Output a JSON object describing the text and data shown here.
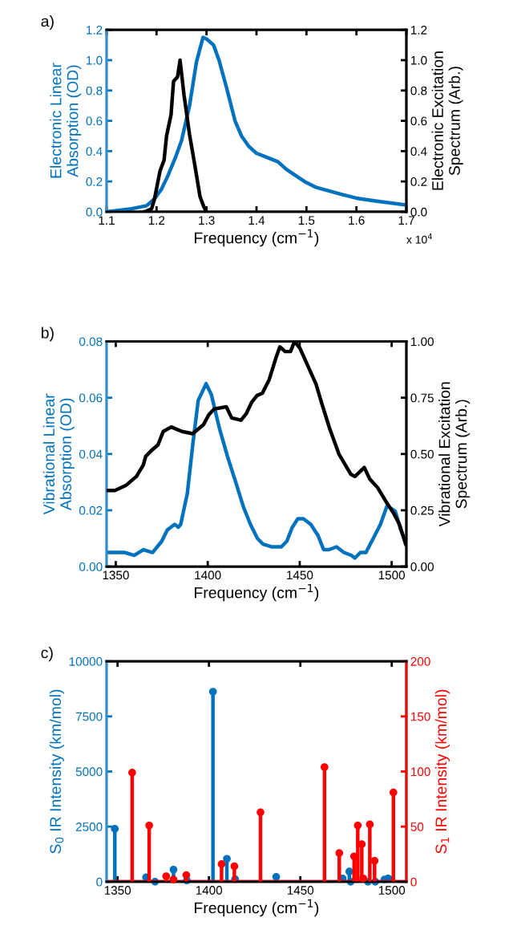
{
  "chart_data": [
    {
      "type": "line",
      "title": "a)",
      "xlabel": "Frequency (cm$^{−1}$)",
      "ylabel": "Electronic Linear\nAbsorption (OD)",
      "y2label": "Electronic Excitation\nSpectrum (Arb.)",
      "xlim": [
        1.1,
        1.7
      ],
      "xticks": [
        1.1,
        1.2,
        1.3,
        1.4,
        1.5,
        1.6,
        1.7
      ],
      "ylim": [
        0,
        1.2
      ],
      "yticks": [
        {
          "value": 0,
          "label": "0.0"
        },
        {
          "value": 0.2,
          "label": "0.2"
        },
        {
          "value": 0.4,
          "label": "0.4"
        },
        {
          "value": 0.6,
          "label": "0.6"
        },
        {
          "value": 0.8,
          "label": "0.8"
        },
        {
          "value": 1.0,
          "label": "1.0"
        },
        {
          "value": 1.2,
          "label": "1.2"
        }
      ],
      "y2lim": [
        0,
        1.2
      ],
      "y2ticks": [
        {
          "value": 0,
          "label": "0.0"
        },
        {
          "value": 0.2,
          "label": "0.2"
        },
        {
          "value": 0.4,
          "label": "0.4"
        },
        {
          "value": 0.6,
          "label": "0.6"
        },
        {
          "value": 0.8,
          "label": "0.8"
        },
        {
          "value": 1.0,
          "label": "1.0"
        },
        {
          "value": 1.2,
          "label": "1.2"
        }
      ],
      "annotations": [
        "x 10$^{4}$"
      ],
      "series": [
        {
          "color": "#0072bd",
          "x": [
            1.1,
            1.15,
            1.18,
            1.196,
            1.21,
            1.223,
            1.238,
            1.25,
            1.266,
            1.28,
            1.293,
            1.3,
            1.314,
            1.325,
            1.34,
            1.357,
            1.37,
            1.385,
            1.4,
            1.42,
            1.443,
            1.46,
            1.496,
            1.52,
            1.571,
            1.6,
            1.641,
            1.7
          ],
          "values": [
            0.0,
            0.02,
            0.04,
            0.086,
            0.15,
            0.24,
            0.36,
            0.47,
            0.7,
            0.99,
            1.15,
            1.14,
            1.1,
            1.0,
            0.82,
            0.6,
            0.5,
            0.43,
            0.386,
            0.36,
            0.33,
            0.28,
            0.2,
            0.16,
            0.114,
            0.09,
            0.07,
            0.045
          ]
        },
        {
          "color": "#000000",
          "axis": "y2",
          "x": [
            1.175,
            1.18,
            1.19,
            1.196,
            1.207,
            1.215,
            1.22,
            1.229,
            1.234,
            1.242,
            1.247,
            1.255,
            1.266,
            1.277,
            1.287,
            1.295,
            1.3
          ],
          "values": [
            0.0,
            0.005,
            0.02,
            0.086,
            0.27,
            0.34,
            0.5,
            0.64,
            0.86,
            0.89,
            1.0,
            0.77,
            0.51,
            0.3,
            0.1,
            0.03,
            0.0
          ]
        }
      ]
    },
    {
      "type": "line",
      "title": "b)",
      "xlabel": "Frequency (cm$^{−1}$)",
      "ylabel": "Vibrational Linear\nAbsorption (OD)",
      "y2label": "Vibrational Excitation\nSpectrum (Arb.)",
      "xlim": [
        1345,
        1508
      ],
      "xticks": [
        1350,
        1400,
        1450,
        1500
      ],
      "ylim": [
        0,
        0.08
      ],
      "yticks": [
        {
          "value": 0,
          "label": "0.00"
        },
        {
          "value": 0.02,
          "label": "0.02"
        },
        {
          "value": 0.04,
          "label": "0.04"
        },
        {
          "value": 0.06,
          "label": "0.06"
        },
        {
          "value": 0.08,
          "label": "0.08"
        }
      ],
      "y2lim": [
        0,
        1.0
      ],
      "y2ticks": [
        {
          "value": 0,
          "label": "0.00"
        },
        {
          "value": 0.25,
          "label": "0.25"
        },
        {
          "value": 0.5,
          "label": "0.50"
        },
        {
          "value": 0.75,
          "label": "0.75"
        },
        {
          "value": 1.0,
          "label": "1.00"
        }
      ],
      "series": [
        {
          "color": "#0072bd",
          "x": [
            1345,
            1350,
            1355,
            1360,
            1365,
            1370,
            1375,
            1378,
            1380,
            1382,
            1384,
            1385.3,
            1388.9,
            1391.8,
            1394.8,
            1399.1,
            1402,
            1406.4,
            1410.8,
            1415.2,
            1419.5,
            1423.2,
            1427,
            1430,
            1435,
            1440,
            1443,
            1446,
            1449,
            1452,
            1456,
            1460,
            1463,
            1466,
            1470,
            1474,
            1478,
            1480,
            1483,
            1486,
            1490,
            1493.9,
            1497.5,
            1501.9,
            1505,
            1508
          ],
          "values": [
            0.005,
            0.005,
            0.005,
            0.004,
            0.006,
            0.005,
            0.009,
            0.013,
            0.014,
            0.015,
            0.014,
            0.015,
            0.026,
            0.043,
            0.059,
            0.065,
            0.061,
            0.049,
            0.039,
            0.03,
            0.021,
            0.015,
            0.01,
            0.008,
            0.007,
            0.007,
            0.009,
            0.014,
            0.017,
            0.017,
            0.015,
            0.011,
            0.006,
            0.006,
            0.007,
            0.005,
            0.004,
            0.003,
            0.005,
            0.005,
            0.01,
            0.015,
            0.0216,
            0.0197,
            0.013,
            0.008
          ]
        },
        {
          "color": "#000000",
          "axis": "y2",
          "x": [
            1345.2,
            1349.6,
            1355.4,
            1361.2,
            1364.9,
            1366.3,
            1370,
            1372.9,
            1375.8,
            1380.2,
            1386,
            1391.8,
            1397.7,
            1400.6,
            1403.5,
            1407.1,
            1410.1,
            1413,
            1418.1,
            1421,
            1423.9,
            1426.8,
            1429.7,
            1433.4,
            1437,
            1439.2,
            1442.1,
            1445,
            1447.2,
            1450.1,
            1454.5,
            1458.9,
            1461.8,
            1466.2,
            1471.3,
            1474.2,
            1477.8,
            1480,
            1485.1,
            1488,
            1492.4,
            1496.8,
            1501.2,
            1504.1,
            1507.6
          ],
          "values": [
            0.338,
            0.338,
            0.36,
            0.4,
            0.45,
            0.49,
            0.52,
            0.54,
            0.6,
            0.62,
            0.6,
            0.59,
            0.63,
            0.675,
            0.7,
            0.705,
            0.71,
            0.66,
            0.65,
            0.68,
            0.73,
            0.76,
            0.77,
            0.83,
            0.925,
            0.976,
            0.955,
            0.955,
            1.0,
            0.97,
            0.89,
            0.81,
            0.73,
            0.615,
            0.5,
            0.46,
            0.41,
            0.4,
            0.44,
            0.39,
            0.35,
            0.29,
            0.235,
            0.19,
            0.1
          ]
        }
      ]
    },
    {
      "type": "lollipop",
      "title": "c)",
      "xlabel": "Frequency (cm$^{−1}$)",
      "ylabel": "S$_{0}$ IR Intensity (km/mol)",
      "y2label": "S$_{1}$ IR Intensity (km/mol)",
      "marker": "circle",
      "xlim": [
        1344,
        1508
      ],
      "xticks": [
        1350,
        1400,
        1450,
        1500
      ],
      "ylim": [
        0,
        10000
      ],
      "yticks": [
        0,
        2500,
        5000,
        7500,
        10000
      ],
      "y2lim": [
        0,
        200
      ],
      "y2ticks": [
        0,
        50,
        100,
        150,
        200
      ],
      "series": [
        {
          "color": "#0072bd",
          "x": [
            1348.5,
            1365.6,
            1370.5,
            1380.6,
            1387.9,
            1402.2,
            1409.8,
            1414.3,
            1436.8,
            1473.1,
            1476.8,
            1477.5,
            1487,
            1491,
            1496,
            1498
          ],
          "values": [
            2400,
            200,
            0,
            550,
            60,
            8620,
            1040,
            120,
            220,
            150,
            460,
            0,
            0,
            0,
            100,
            150
          ]
        },
        {
          "color": "#ff0000",
          "axis": "y2",
          "x": [
            1358,
            1367.3,
            1376.6,
            1380.6,
            1387.6,
            1406.9,
            1413.9,
            1428.2,
            1463.2,
            1471.3,
            1479.4,
            1481.4,
            1483.6,
            1484.4,
            1488,
            1490.6,
            1500.9
          ],
          "values": [
            99,
            51,
            5,
            2,
            6,
            16,
            14,
            63,
            104,
            26,
            23,
            51,
            34,
            3,
            52,
            19,
            81
          ]
        }
      ]
    }
  ]
}
